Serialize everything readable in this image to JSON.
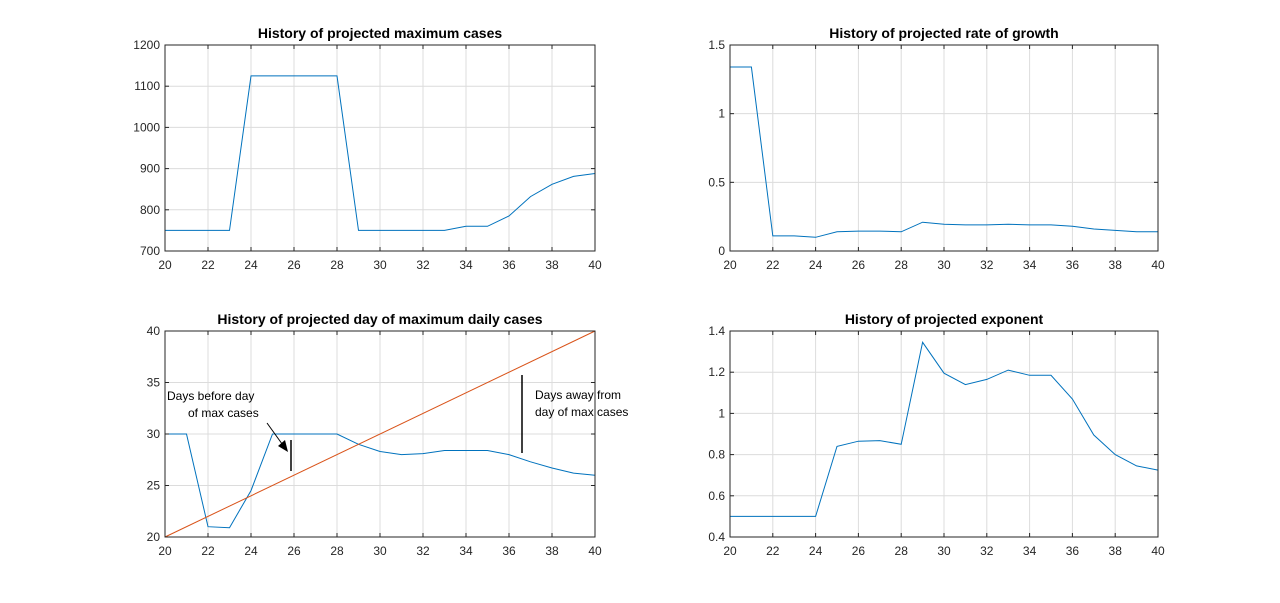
{
  "chart_data": [
    {
      "type": "line",
      "title": "History of projected maximum cases",
      "xlim": [
        20,
        40
      ],
      "ylim": [
        700,
        1200
      ],
      "xticks": [
        20,
        22,
        24,
        26,
        28,
        30,
        32,
        34,
        36,
        38,
        40
      ],
      "yticks": [
        700,
        800,
        900,
        1000,
        1100,
        1200
      ],
      "grid": true,
      "series": [
        {
          "color": "#0072BD",
          "x": [
            20,
            21,
            22,
            23,
            24,
            25,
            26,
            27,
            28,
            29,
            30,
            31,
            32,
            33,
            34,
            35,
            36,
            37,
            38,
            39,
            40
          ],
          "y": [
            750,
            750,
            750,
            750,
            1125,
            1125,
            1125,
            1125,
            1125,
            750,
            750,
            750,
            750,
            750,
            760,
            760,
            785,
            832,
            862,
            881,
            888
          ]
        }
      ]
    },
    {
      "type": "line",
      "title": "History of projected rate of growth",
      "xlim": [
        20,
        40
      ],
      "ylim": [
        0,
        1.5
      ],
      "xticks": [
        20,
        22,
        24,
        26,
        28,
        30,
        32,
        34,
        36,
        38,
        40
      ],
      "yticks": [
        0,
        0.5,
        1,
        1.5
      ],
      "grid": true,
      "series": [
        {
          "color": "#0072BD",
          "x": [
            20,
            21,
            22,
            23,
            24,
            25,
            26,
            27,
            28,
            29,
            30,
            31,
            32,
            33,
            34,
            35,
            36,
            37,
            38,
            39,
            40
          ],
          "y": [
            1.34,
            1.34,
            0.11,
            0.11,
            0.1,
            0.14,
            0.145,
            0.145,
            0.14,
            0.21,
            0.195,
            0.19,
            0.19,
            0.195,
            0.19,
            0.19,
            0.18,
            0.16,
            0.15,
            0.14,
            0.14
          ]
        }
      ]
    },
    {
      "type": "line",
      "title": "History of projected day of maximum daily cases",
      "xlim": [
        20,
        40
      ],
      "ylim": [
        20,
        40
      ],
      "xticks": [
        20,
        22,
        24,
        26,
        28,
        30,
        32,
        34,
        36,
        38,
        40
      ],
      "yticks": [
        20,
        25,
        30,
        35,
        40
      ],
      "grid": true,
      "series": [
        {
          "color": "#0072BD",
          "x": [
            20,
            21,
            22,
            23,
            24,
            25,
            26,
            27,
            28,
            29,
            30,
            31,
            32,
            33,
            34,
            35,
            36,
            37,
            38,
            39,
            40
          ],
          "y": [
            30,
            30,
            21,
            20.9,
            24.5,
            30,
            30,
            30,
            30,
            29,
            28.3,
            28,
            28.1,
            28.4,
            28.4,
            28.4,
            28,
            27.3,
            26.7,
            26.2,
            26
          ]
        },
        {
          "color": "#D95319",
          "x": [
            20,
            40
          ],
          "y": [
            20,
            40
          ]
        }
      ],
      "annotations": [
        {
          "lines": [
            "Days before day",
            "of max cases"
          ]
        },
        {
          "lines": [
            "Days away from",
            "day of max cases"
          ]
        }
      ]
    },
    {
      "type": "line",
      "title": "History of projected exponent",
      "xlim": [
        20,
        40
      ],
      "ylim": [
        0.4,
        1.4
      ],
      "xticks": [
        20,
        22,
        24,
        26,
        28,
        30,
        32,
        34,
        36,
        38,
        40
      ],
      "yticks": [
        0.4,
        0.6,
        0.8,
        1,
        1.2,
        1.4
      ],
      "grid": true,
      "series": [
        {
          "color": "#0072BD",
          "x": [
            20,
            21,
            22,
            23,
            24,
            25,
            26,
            27,
            28,
            29,
            30,
            31,
            32,
            33,
            34,
            35,
            36,
            37,
            38,
            39,
            40
          ],
          "y": [
            0.5,
            0.5,
            0.5,
            0.5,
            0.5,
            0.84,
            0.865,
            0.868,
            0.85,
            1.345,
            1.195,
            1.14,
            1.165,
            1.21,
            1.185,
            1.185,
            1.07,
            0.895,
            0.8,
            0.745,
            0.725
          ]
        }
      ]
    }
  ]
}
